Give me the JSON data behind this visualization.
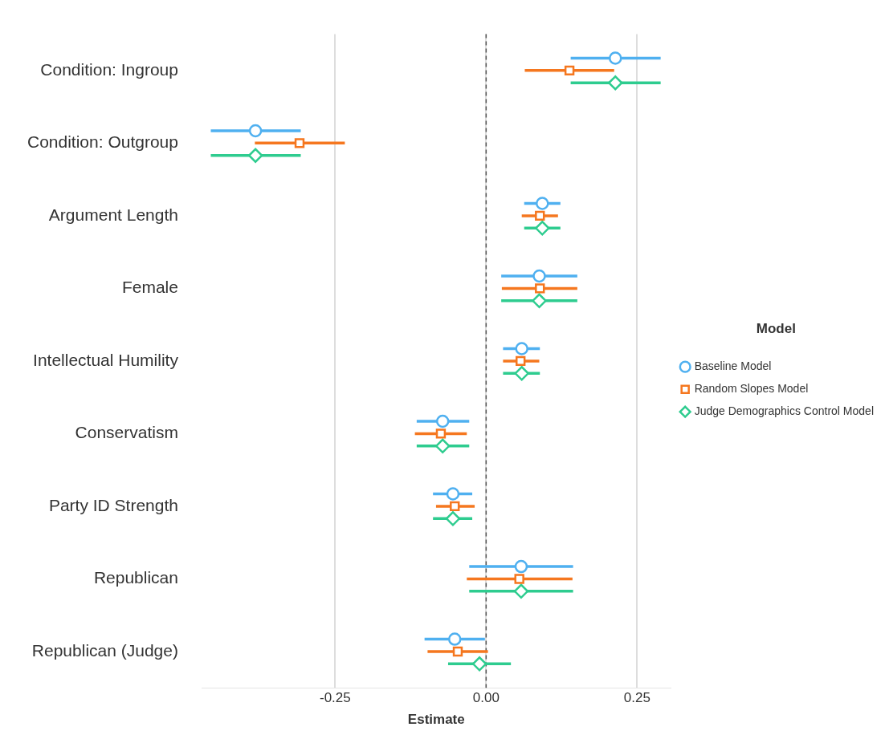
{
  "chart_data": {
    "type": "scatter",
    "orientation": "horizontal",
    "xlabel": "Estimate",
    "legend_title": "Model",
    "legend": "right",
    "grid": "x",
    "categories": [
      "Condition: Ingroup",
      "Condition: Outgroup",
      "Argument Length",
      "Female",
      "Intellectual Humility",
      "Conservatism",
      "Party ID Strength",
      "Republican",
      "Republican (Judge)"
    ],
    "xlim": [
      -0.47,
      0.305
    ],
    "xticks": [
      {
        "value": -0.25,
        "label": "-0.25"
      },
      {
        "value": 0,
        "label": "0.00"
      },
      {
        "value": 0.25,
        "label": "0.25"
      }
    ],
    "ref_lines": [
      {
        "axis": "x",
        "value": 0,
        "color": "#555555",
        "line_style": "dashed"
      }
    ],
    "series": [
      {
        "name": "Baseline Model",
        "color": "#4fb0f0",
        "marker": "circle",
        "values": [
          0.214,
          -0.382,
          0.093,
          0.088,
          0.059,
          -0.072,
          -0.055,
          0.058,
          -0.052
        ],
        "errors": [
          [
            0.14,
            0.289
          ],
          [
            -0.456,
            -0.307
          ],
          [
            0.063,
            0.123
          ],
          [
            0.025,
            0.151
          ],
          [
            0.028,
            0.089
          ],
          [
            -0.115,
            -0.028
          ],
          [
            -0.088,
            -0.023
          ],
          [
            -0.028,
            0.144
          ],
          [
            -0.102,
            -0.002
          ]
        ]
      },
      {
        "name": "Random Slopes Model",
        "color": "#f5771f",
        "marker": "square",
        "values": [
          0.138,
          -0.309,
          0.089,
          0.089,
          0.057,
          -0.075,
          -0.052,
          0.055,
          -0.047
        ],
        "errors": [
          [
            0.064,
            0.212
          ],
          [
            -0.383,
            -0.234
          ],
          [
            0.059,
            0.119
          ],
          [
            0.026,
            0.151
          ],
          [
            0.028,
            0.088
          ],
          [
            -0.118,
            -0.032
          ],
          [
            -0.083,
            -0.019
          ],
          [
            -0.032,
            0.143
          ],
          [
            -0.097,
            0.003
          ]
        ]
      },
      {
        "name": "Judge Demographics Control Model",
        "color": "#2ecc8f",
        "marker": "diamond",
        "values": [
          0.214,
          -0.382,
          0.093,
          0.088,
          0.059,
          -0.072,
          -0.055,
          0.058,
          -0.011
        ],
        "errors": [
          [
            0.14,
            0.289
          ],
          [
            -0.456,
            -0.307
          ],
          [
            0.063,
            0.123
          ],
          [
            0.025,
            0.151
          ],
          [
            0.028,
            0.089
          ],
          [
            -0.115,
            -0.028
          ],
          [
            -0.088,
            -0.023
          ],
          [
            -0.028,
            0.144
          ],
          [
            -0.063,
            0.041
          ]
        ]
      }
    ]
  }
}
